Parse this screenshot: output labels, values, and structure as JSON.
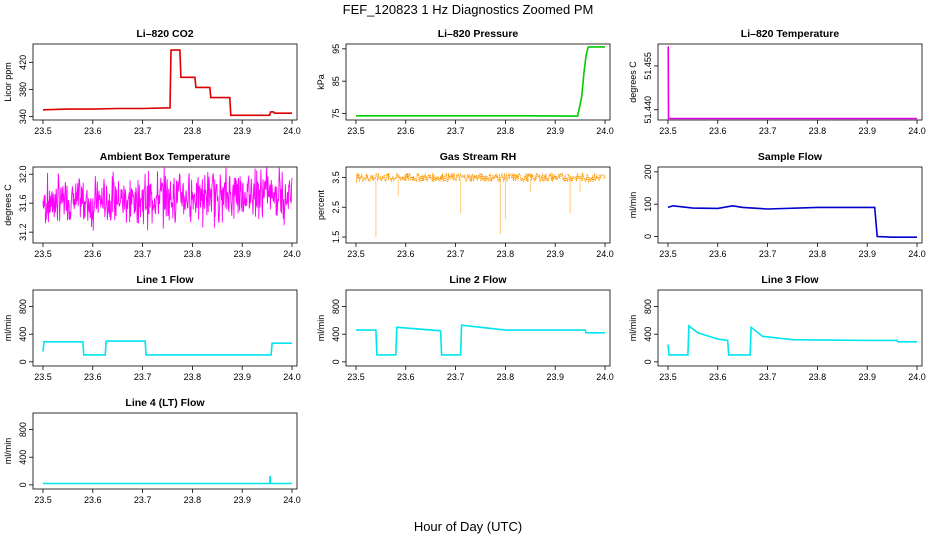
{
  "figure": {
    "title": "FEF_120823  1 Hz Diagnostics Zoomed PM",
    "xlabel": "Hour of Day (UTC)"
  },
  "chart_data": [
    {
      "type": "line",
      "title": "Li–820 CO2",
      "ylabel": "Licor ppm",
      "color": "#dd0000",
      "x_ticks": [
        "23.5",
        "23.6",
        "23.7",
        "23.8",
        "23.9",
        "24.0"
      ],
      "y_ticks": [
        340,
        380,
        420
      ],
      "xlim": [
        23.48,
        24.01
      ],
      "ylim": [
        335,
        447
      ],
      "series": [
        {
          "x": [
            23.5,
            23.55,
            23.6,
            23.65,
            23.7,
            23.755,
            23.757,
            23.775,
            23.777,
            23.805,
            23.807,
            23.835,
            23.837,
            23.875,
            23.877,
            23.955,
            23.957,
            23.963,
            23.965,
            24.0
          ],
          "y": [
            350,
            351,
            351,
            352,
            352,
            353,
            438,
            438,
            398,
            398,
            383,
            383,
            368,
            368,
            342,
            342,
            347,
            347,
            345,
            345
          ]
        }
      ]
    },
    {
      "type": "line",
      "title": "Li–820 Pressure",
      "ylabel": "kPa",
      "color": "#00cc00",
      "x_ticks": [
        "23.5",
        "23.6",
        "23.7",
        "23.8",
        "23.9",
        "24.0"
      ],
      "y_ticks": [
        75,
        85,
        95
      ],
      "xlim": [
        23.48,
        24.01
      ],
      "ylim": [
        73,
        96.5
      ],
      "series": [
        {
          "x": [
            23.5,
            23.7,
            23.85,
            23.925,
            23.945,
            23.953,
            23.958,
            23.962,
            23.966,
            23.97,
            24.0
          ],
          "y": [
            74.3,
            74.3,
            74.3,
            74.2,
            74.2,
            80,
            88,
            93,
            95.5,
            95.6,
            95.6
          ]
        }
      ]
    },
    {
      "type": "line",
      "title": "Li–820 Temperature",
      "ylabel": "degrees C",
      "color": "#ee00ee",
      "x_ticks": [
        "23.5",
        "23.6",
        "23.7",
        "23.8",
        "23.9",
        "24.0"
      ],
      "y_ticks": [
        51.44,
        51.455
      ],
      "y_tick_labels": [
        "51.440",
        "51.455"
      ],
      "xlim": [
        23.48,
        24.01
      ],
      "ylim": [
        51.4365,
        51.4625
      ],
      "series": [
        {
          "x": [
            23.5,
            23.5005,
            23.501,
            24.0
          ],
          "y": [
            51.4615,
            51.4615,
            51.437,
            51.437
          ]
        }
      ]
    },
    {
      "type": "line",
      "title": "Ambient Box Temperature",
      "ylabel": "degrees C",
      "color": "#ff00ff",
      "noise": "dense",
      "x_ticks": [
        "23.5",
        "23.6",
        "23.7",
        "23.8",
        "23.9",
        "24.0"
      ],
      "y_ticks": [
        31.2,
        31.6,
        32.0
      ],
      "y_tick_labels": [
        "31.2",
        "31.6",
        "32.0"
      ],
      "xlim": [
        23.48,
        24.01
      ],
      "ylim": [
        31.05,
        32.1
      ],
      "series": [
        {
          "x": [
            23.5,
            23.55,
            23.6,
            23.65,
            23.7,
            23.75,
            23.8,
            23.85,
            23.9,
            23.95,
            24.0
          ],
          "y": [
            31.6,
            31.65,
            31.6,
            31.65,
            31.65,
            31.7,
            31.7,
            31.7,
            31.75,
            31.75,
            31.7
          ],
          "amplitude": 0.35
        }
      ]
    },
    {
      "type": "line",
      "title": "Gas Stream RH",
      "ylabel": "percent",
      "color": "#ff9900",
      "style": "points",
      "x_ticks": [
        "23.5",
        "23.6",
        "23.7",
        "23.8",
        "23.9",
        "24.0"
      ],
      "y_ticks": [
        1.5,
        2.5,
        3.5
      ],
      "y_tick_labels": [
        "1.5",
        "2.5",
        "3.5"
      ],
      "xlim": [
        23.48,
        24.01
      ],
      "ylim": [
        1.3,
        3.85
      ],
      "series": [
        {
          "x": [
            23.5,
            23.6,
            23.7,
            23.8,
            23.9,
            24.0
          ],
          "y": [
            3.5,
            3.5,
            3.5,
            3.5,
            3.5,
            3.5
          ],
          "amplitude": 0.15,
          "dips": [
            [
              23.54,
              1.5
            ],
            [
              23.585,
              2.9
            ],
            [
              23.71,
              2.3
            ],
            [
              23.79,
              1.6
            ],
            [
              23.8,
              2.1
            ],
            [
              23.85,
              3.0
            ],
            [
              23.93,
              2.3
            ],
            [
              23.95,
              3.0
            ]
          ]
        }
      ]
    },
    {
      "type": "line",
      "title": "Sample Flow",
      "ylabel": "ml/min",
      "color": "#0000cc",
      "x_ticks": [
        "23.5",
        "23.6",
        "23.7",
        "23.8",
        "23.9",
        "24.0"
      ],
      "y_ticks": [
        0,
        100,
        200
      ],
      "xlim": [
        23.48,
        24.01
      ],
      "ylim": [
        -20,
        215
      ],
      "series": [
        {
          "x": [
            23.5,
            23.51,
            23.55,
            23.6,
            23.63,
            23.65,
            23.7,
            23.8,
            23.85,
            23.9,
            23.915,
            23.92,
            23.95,
            24.0
          ],
          "y": [
            90,
            95,
            88,
            87,
            95,
            90,
            85,
            90,
            90,
            90,
            90,
            0,
            -2,
            -2
          ]
        }
      ]
    },
    {
      "type": "line",
      "title": "Line 1 Flow",
      "ylabel": "ml/min",
      "color": "#00e5ee",
      "x_ticks": [
        "23.5",
        "23.6",
        "23.7",
        "23.8",
        "23.9",
        "24.0"
      ],
      "y_ticks": [
        0,
        400,
        800
      ],
      "xlim": [
        23.48,
        24.01
      ],
      "ylim": [
        -60,
        1040
      ],
      "series": [
        {
          "x": [
            23.5,
            23.502,
            23.58,
            23.582,
            23.625,
            23.627,
            23.705,
            23.707,
            23.958,
            23.96,
            24.0
          ],
          "y": [
            150,
            290,
            290,
            100,
            100,
            300,
            300,
            100,
            100,
            270,
            270
          ]
        }
      ]
    },
    {
      "type": "line",
      "title": "Line 2 Flow",
      "ylabel": "ml/min",
      "color": "#00e5ee",
      "x_ticks": [
        "23.5",
        "23.6",
        "23.7",
        "23.8",
        "23.9",
        "24.0"
      ],
      "y_ticks": [
        0,
        400,
        800
      ],
      "xlim": [
        23.48,
        24.01
      ],
      "ylim": [
        -60,
        1040
      ],
      "series": [
        {
          "x": [
            23.5,
            23.54,
            23.542,
            23.58,
            23.582,
            23.67,
            23.672,
            23.71,
            23.712,
            23.8,
            23.96,
            23.962,
            24.0
          ],
          "y": [
            460,
            460,
            100,
            100,
            500,
            450,
            100,
            100,
            530,
            460,
            460,
            420,
            420
          ]
        }
      ]
    },
    {
      "type": "line",
      "title": "Line 3 Flow",
      "ylabel": "ml/min",
      "color": "#00e5ee",
      "x_ticks": [
        "23.5",
        "23.6",
        "23.7",
        "23.8",
        "23.9",
        "24.0"
      ],
      "y_ticks": [
        0,
        400,
        800
      ],
      "xlim": [
        23.48,
        24.01
      ],
      "ylim": [
        -60,
        1040
      ],
      "series": [
        {
          "x": [
            23.5,
            23.502,
            23.54,
            23.542,
            23.56,
            23.6,
            23.62,
            23.622,
            23.665,
            23.667,
            23.69,
            23.75,
            23.9,
            23.96,
            23.962,
            24.0
          ],
          "y": [
            250,
            100,
            100,
            520,
            420,
            330,
            310,
            100,
            100,
            500,
            370,
            320,
            310,
            310,
            290,
            290
          ]
        }
      ]
    },
    {
      "type": "line",
      "title": "Line 4 (LT) Flow",
      "ylabel": "ml/min",
      "color": "#00e5ee",
      "x_ticks": [
        "23.5",
        "23.6",
        "23.7",
        "23.8",
        "23.9",
        "24.0"
      ],
      "y_ticks": [
        0,
        400,
        800
      ],
      "xlim": [
        23.48,
        24.01
      ],
      "ylim": [
        -60,
        1040
      ],
      "series": [
        {
          "x": [
            23.5,
            23.955,
            23.956,
            23.957,
            23.958,
            24.0
          ],
          "y": [
            20,
            20,
            130,
            20,
            20,
            20
          ]
        }
      ]
    }
  ]
}
